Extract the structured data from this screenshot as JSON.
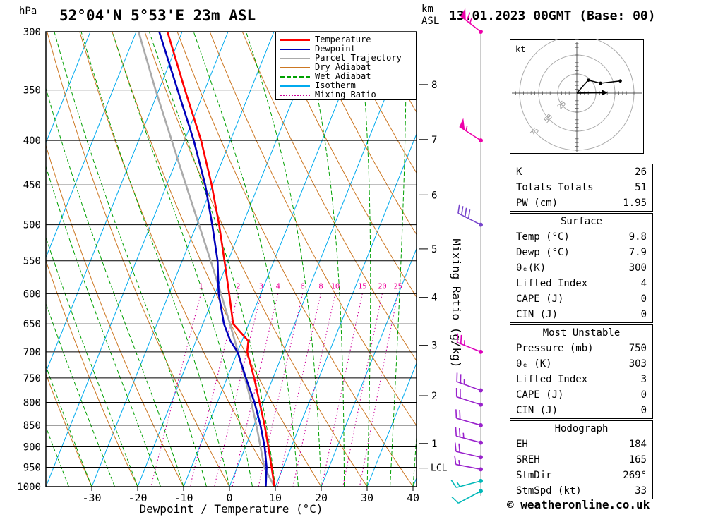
{
  "header": {
    "station": "52°04'N 5°53'E 23m ASL",
    "datetime": "13.01.2023 00GMT (Base: 00)",
    "left_axis_unit": "hPa",
    "right_axis_unit_line1": "km",
    "right_axis_unit_line2": "ASL"
  },
  "footer": {
    "copyright": "© weatheronline.co.uk"
  },
  "legend": {
    "items": [
      {
        "label": "Temperature",
        "color": "#ff0000",
        "style": "solid"
      },
      {
        "label": "Dewpoint",
        "color": "#0000bb",
        "style": "solid"
      },
      {
        "label": "Parcel Trajectory",
        "color": "#aaaaaa",
        "style": "solid"
      },
      {
        "label": "Dry Adiabat",
        "color": "#cc7722",
        "style": "solid"
      },
      {
        "label": "Wet Adiabat",
        "color": "#00a000",
        "style": "dashed"
      },
      {
        "label": "Isotherm",
        "color": "#00aaee",
        "style": "solid"
      },
      {
        "label": "Mixing Ratio",
        "color": "#cc0099",
        "style": "dotted"
      }
    ]
  },
  "chart_data": {
    "type": "skew-t-log-p-sounding",
    "x_axis": {
      "title": "Dewpoint / Temperature (°C)",
      "ticks": [
        -30,
        -20,
        -10,
        0,
        10,
        20,
        30,
        40
      ]
    },
    "y_axis": {
      "unit": "hPa",
      "scale": "log",
      "levels": [
        300,
        350,
        400,
        450,
        500,
        550,
        600,
        650,
        700,
        750,
        800,
        850,
        900,
        950,
        1000
      ]
    },
    "km_axis": {
      "ticks": [
        {
          "km": 8,
          "p": 345
        },
        {
          "km": 7,
          "p": 399
        },
        {
          "km": 6,
          "p": 462
        },
        {
          "km": 5,
          "p": 533
        },
        {
          "km": 4,
          "p": 606
        },
        {
          "km": 3,
          "p": 688
        },
        {
          "km": 2,
          "p": 786
        },
        {
          "km": 1,
          "p": 892
        }
      ],
      "lcl": {
        "label": "LCL",
        "p": 952
      }
    },
    "isotherms": {
      "color": "#00aaee",
      "temps": [
        -80,
        -70,
        -60,
        -50,
        -40,
        -30,
        -20,
        -10,
        0,
        10,
        20,
        30,
        40
      ]
    },
    "dry_adiabats": {
      "color": "#cc7722",
      "theta_c": [
        -40,
        -30,
        -20,
        -10,
        0,
        10,
        20,
        30,
        40,
        50,
        60,
        70,
        80,
        90,
        100,
        110,
        120
      ]
    },
    "wet_adiabats": {
      "color": "#00a000",
      "theta_w_c": [
        -60,
        -55,
        -50,
        -45,
        -40,
        -35,
        -30,
        -25,
        -20,
        -15,
        -10,
        -5,
        0,
        5,
        10,
        15,
        20,
        25,
        30,
        35,
        40,
        45,
        50
      ]
    },
    "mixing_ratio": {
      "title": "Mixing Ratio (g/kg)",
      "color": "#cc0099",
      "label_color": "#ee0099",
      "top_p": 600,
      "values": [
        1,
        2,
        3,
        4,
        6,
        8,
        10,
        15,
        20,
        25
      ]
    },
    "temperature_profile": {
      "color": "#ff0000",
      "points": [
        [
          1000,
          9.8
        ],
        [
          950,
          7.5
        ],
        [
          900,
          5.0
        ],
        [
          850,
          2.3
        ],
        [
          800,
          -0.8
        ],
        [
          750,
          -4.1
        ],
        [
          700,
          -7.9
        ],
        [
          680,
          -8.6
        ],
        [
          650,
          -13.4
        ],
        [
          600,
          -16.9
        ],
        [
          550,
          -20.8
        ],
        [
          500,
          -25.1
        ],
        [
          450,
          -30.2
        ],
        [
          400,
          -36.4
        ],
        [
          350,
          -44.3
        ],
        [
          300,
          -53.2
        ]
      ]
    },
    "dewpoint_profile": {
      "color": "#0000bb",
      "points": [
        [
          1000,
          7.9
        ],
        [
          950,
          6.4
        ],
        [
          900,
          4.2
        ],
        [
          850,
          1.4
        ],
        [
          800,
          -1.9
        ],
        [
          750,
          -5.9
        ],
        [
          700,
          -10.0
        ],
        [
          680,
          -12.5
        ],
        [
          650,
          -15.4
        ],
        [
          600,
          -19.2
        ],
        [
          550,
          -22.3
        ],
        [
          500,
          -26.6
        ],
        [
          450,
          -31.6
        ],
        [
          400,
          -38.0
        ],
        [
          350,
          -45.9
        ],
        [
          300,
          -55.0
        ]
      ]
    },
    "parcel_profile": {
      "color": "#aaaaaa",
      "points": [
        [
          1000,
          9.8
        ],
        [
          950,
          5.9
        ],
        [
          900,
          3.3
        ],
        [
          850,
          0.5
        ],
        [
          800,
          -2.6
        ],
        [
          750,
          -6.1
        ],
        [
          700,
          -9.9
        ],
        [
          650,
          -14.1
        ],
        [
          600,
          -18.7
        ],
        [
          550,
          -23.8
        ],
        [
          500,
          -29.5
        ],
        [
          450,
          -35.8
        ],
        [
          400,
          -42.8
        ],
        [
          350,
          -50.7
        ],
        [
          300,
          -59.5
        ]
      ]
    },
    "wind_barbs": {
      "levels": [
        {
          "p": 300,
          "color": "#ee00aa",
          "flags": 1,
          "fulls": 1,
          "halfs": 1,
          "angle": 38
        },
        {
          "p": 400,
          "color": "#ee00aa",
          "flags": 1,
          "fulls": 0,
          "halfs": 1,
          "angle": 33
        },
        {
          "p": 500,
          "color": "#7744cc",
          "flags": 0,
          "fulls": 4,
          "halfs": 0,
          "angle": 27
        },
        {
          "p": 700,
          "color": "#dd00bb",
          "flags": 0,
          "fulls": 2,
          "halfs": 1,
          "angle": 22
        },
        {
          "p": 775,
          "color": "#9922cc",
          "flags": 0,
          "fulls": 2,
          "halfs": 1,
          "angle": 20
        },
        {
          "p": 805,
          "color": "#9922cc",
          "flags": 0,
          "fulls": 2,
          "halfs": 0,
          "angle": 18
        },
        {
          "p": 850,
          "color": "#9922cc",
          "flags": 0,
          "fulls": 2,
          "halfs": 0,
          "angle": 16
        },
        {
          "p": 890,
          "color": "#9922cc",
          "flags": 0,
          "fulls": 2,
          "halfs": 1,
          "angle": 15
        },
        {
          "p": 925,
          "color": "#9922cc",
          "flags": 0,
          "fulls": 2,
          "halfs": 0,
          "angle": 13
        },
        {
          "p": 955,
          "color": "#9922cc",
          "flags": 0,
          "fulls": 1,
          "halfs": 1,
          "angle": 11
        },
        {
          "p": 985,
          "color": "#00b8b8",
          "flags": 0,
          "fulls": 1,
          "halfs": 1,
          "angle": -15
        },
        {
          "p": 1012,
          "color": "#00b8b8",
          "flags": 0,
          "fulls": 1,
          "halfs": 0,
          "angle": -28
        }
      ]
    }
  },
  "hodograph": {
    "unit_label": "kt",
    "rings_kt": [
      25,
      50,
      75
    ],
    "ring_labels": [
      "25",
      "50",
      "75"
    ],
    "trace_points_kt": [
      [
        0,
        0
      ],
      [
        15,
        17
      ],
      [
        31,
        13
      ],
      [
        57,
        16
      ]
    ],
    "storm_dir_deg": 269,
    "storm_speed_kt": 33
  },
  "side_tables": [
    {
      "header": null,
      "rows": [
        [
          "K",
          "26"
        ],
        [
          "Totals Totals",
          "51"
        ],
        [
          "PW (cm)",
          "1.95"
        ]
      ]
    },
    {
      "header": "Surface",
      "rows": [
        [
          "Temp (°C)",
          "9.8"
        ],
        [
          "Dewp (°C)",
          "7.9"
        ],
        [
          "θₑ(K)",
          "300"
        ],
        [
          "Lifted Index",
          "4"
        ],
        [
          "CAPE (J)",
          "0"
        ],
        [
          "CIN (J)",
          "0"
        ]
      ]
    },
    {
      "header": "Most Unstable",
      "rows": [
        [
          "Pressure (mb)",
          "750"
        ],
        [
          "θₑ (K)",
          "303"
        ],
        [
          "Lifted Index",
          "3"
        ],
        [
          "CAPE (J)",
          "0"
        ],
        [
          "CIN (J)",
          "0"
        ]
      ]
    },
    {
      "header": "Hodograph",
      "rows": [
        [
          "EH",
          "184"
        ],
        [
          "SREH",
          "165"
        ],
        [
          "StmDir",
          "269°"
        ],
        [
          "StmSpd (kt)",
          "33"
        ]
      ]
    }
  ]
}
